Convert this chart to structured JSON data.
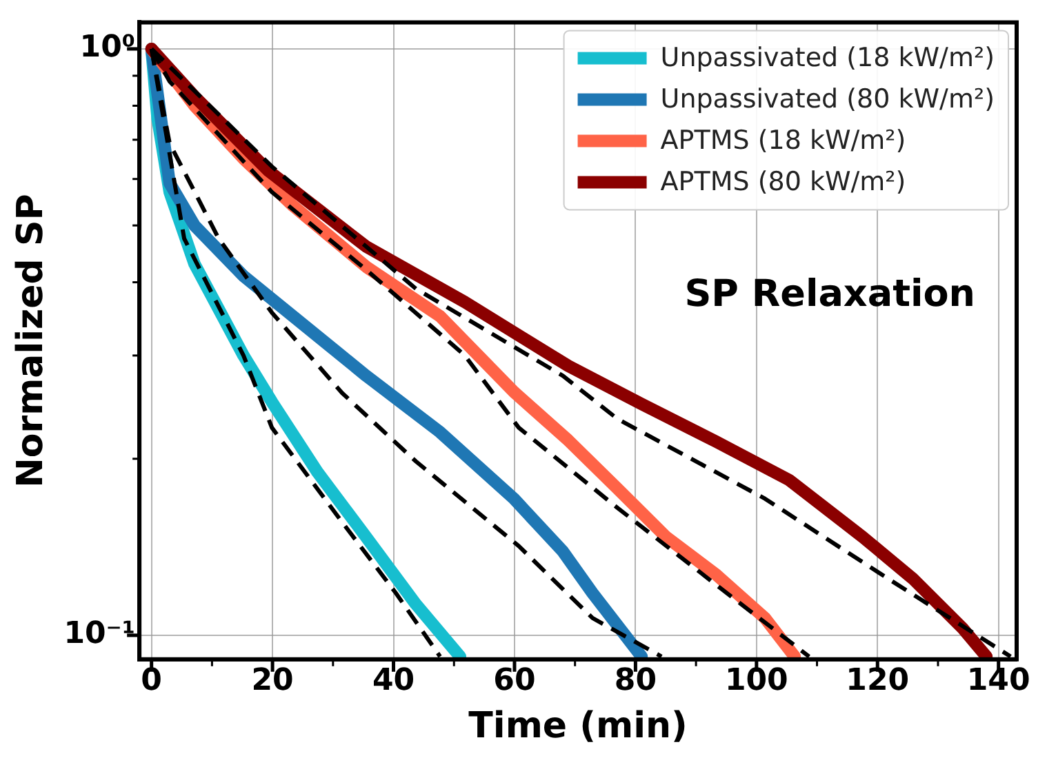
{
  "chart_data": {
    "type": "line",
    "xlabel": "Time (min)",
    "ylabel": "Normalized SP",
    "annotations": [
      "SP Relaxation"
    ],
    "log": "y",
    "grid": true,
    "legend": "top right",
    "marker": "none",
    "xlim": [
      -2,
      143
    ],
    "xticks": [
      0,
      {
        "value": 10,
        "label": null
      },
      20,
      {
        "value": 30,
        "label": null
      },
      40,
      {
        "value": 50,
        "label": null
      },
      60,
      {
        "value": 70,
        "label": null
      },
      80,
      {
        "value": 90,
        "label": null
      },
      100,
      {
        "value": 110,
        "label": null
      },
      120,
      {
        "value": 130,
        "label": null
      },
      140
    ],
    "ylim": [
      0.091,
      1.11
    ],
    "yticks": [
      {
        "value": 0.1,
        "label": "10⁻¹"
      },
      {
        "value": 0.2,
        "label": null
      },
      {
        "value": 0.3,
        "label": null
      },
      {
        "value": 0.4,
        "label": null
      },
      {
        "value": 0.5,
        "label": null
      },
      {
        "value": 0.6,
        "label": null
      },
      {
        "value": 0.7,
        "label": null
      },
      {
        "value": 0.8,
        "label": null
      },
      {
        "value": 0.9,
        "label": null
      },
      {
        "value": 1,
        "label": "10⁰"
      }
    ],
    "series": [
      {
        "name": "Unpassivated (18 kW/m²)",
        "color": "#17becf",
        "line_style": "solid",
        "x": [
          0,
          1,
          3,
          7.1,
          11.1,
          15.2,
          19.9,
          27.4,
          35.5,
          43.7,
          51
        ],
        "values": [
          1,
          0.76,
          0.57,
          0.43,
          0.36,
          0.3,
          0.25,
          0.19,
          0.147,
          0.113,
          0.092
        ]
      },
      {
        "name": "Unpassivated (80 kW/m²)",
        "color": "#1f77b4",
        "line_style": "solid",
        "x": [
          0,
          3,
          7.1,
          15.2,
          23.4,
          35.5,
          47.7,
          59.9,
          68,
          72.9,
          81
        ],
        "values": [
          1,
          0.59,
          0.5,
          0.41,
          0.35,
          0.277,
          0.222,
          0.171,
          0.139,
          0.118,
          0.092
        ]
      },
      {
        "name": "APTMS (18 kW/m²)",
        "color": "#ff6347",
        "line_style": "solid",
        "x": [
          0,
          7.1,
          15.2,
          23.4,
          35.5,
          47.7,
          59.9,
          68.9,
          77,
          85.1,
          93.3,
          101.4,
          106.3
        ],
        "values": [
          1,
          0.8,
          0.65,
          0.54,
          0.425,
          0.35,
          0.26,
          0.215,
          0.178,
          0.147,
          0.127,
          0.107,
          0.092
        ]
      },
      {
        "name": "APTMS (80 kW/m²)",
        "color": "#8b0000",
        "line_style": "solid",
        "x": [
          0,
          7.1,
          19.3,
          35.5,
          51.8,
          68.9,
          81,
          93.3,
          105.4,
          117.6,
          125.8,
          134,
          138
        ],
        "values": [
          1,
          0.83,
          0.62,
          0.46,
          0.37,
          0.288,
          0.248,
          0.214,
          0.184,
          0.147,
          0.125,
          0.103,
          0.092
        ]
      },
      {
        "color": "#000000",
        "line_style": "dashed",
        "x": [
          0,
          5.4,
          15.2,
          19.9,
          31.5,
          40.4,
          47.7
        ],
        "values": [
          1,
          0.475,
          0.3,
          0.226,
          0.156,
          0.118,
          0.092
        ]
      },
      {
        "color": "#000000",
        "line_style": "dashed",
        "x": [
          0,
          3,
          11.1,
          19.9,
          31.5,
          43.7,
          60.7,
          72.9,
          84.3
        ],
        "values": [
          1,
          0.69,
          0.475,
          0.355,
          0.259,
          0.198,
          0.142,
          0.107,
          0.092
        ]
      },
      {
        "color": "#000000",
        "line_style": "dashed",
        "x": [
          0,
          3,
          19.9,
          35.5,
          51.8,
          60.7,
          77,
          93.3,
          108.7
        ],
        "values": [
          1,
          0.88,
          0.57,
          0.42,
          0.3,
          0.226,
          0.165,
          0.122,
          0.092
        ]
      },
      {
        "color": "#000000",
        "line_style": "dashed",
        "x": [
          0,
          19.9,
          43.7,
          68,
          77,
          101.4,
          121.7,
          142
        ],
        "values": [
          1,
          0.63,
          0.39,
          0.277,
          0.234,
          0.171,
          0.125,
          0.092
        ]
      }
    ]
  }
}
